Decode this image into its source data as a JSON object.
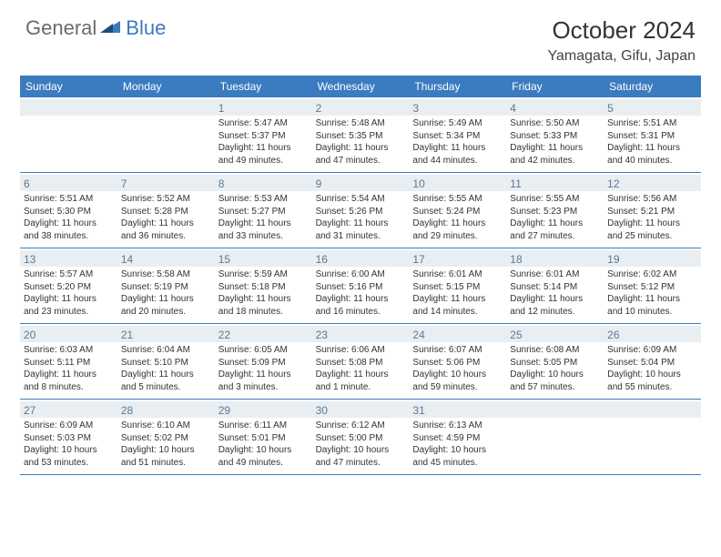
{
  "logo": {
    "general": "General",
    "blue": "Blue"
  },
  "title": "October 2024",
  "location": "Yamagata, Gifu, Japan",
  "colors": {
    "header_bg": "#3b7bbf",
    "daynum_bg": "#e9eef2",
    "daynum_color": "#5a7a96",
    "text": "#333333",
    "border": "#3b7bbf"
  },
  "weekdays": [
    "Sunday",
    "Monday",
    "Tuesday",
    "Wednesday",
    "Thursday",
    "Friday",
    "Saturday"
  ],
  "weeks": [
    [
      null,
      null,
      {
        "n": "1",
        "sr": "5:47 AM",
        "ss": "5:37 PM",
        "dl": "11 hours and 49 minutes."
      },
      {
        "n": "2",
        "sr": "5:48 AM",
        "ss": "5:35 PM",
        "dl": "11 hours and 47 minutes."
      },
      {
        "n": "3",
        "sr": "5:49 AM",
        "ss": "5:34 PM",
        "dl": "11 hours and 44 minutes."
      },
      {
        "n": "4",
        "sr": "5:50 AM",
        "ss": "5:33 PM",
        "dl": "11 hours and 42 minutes."
      },
      {
        "n": "5",
        "sr": "5:51 AM",
        "ss": "5:31 PM",
        "dl": "11 hours and 40 minutes."
      }
    ],
    [
      {
        "n": "6",
        "sr": "5:51 AM",
        "ss": "5:30 PM",
        "dl": "11 hours and 38 minutes."
      },
      {
        "n": "7",
        "sr": "5:52 AM",
        "ss": "5:28 PM",
        "dl": "11 hours and 36 minutes."
      },
      {
        "n": "8",
        "sr": "5:53 AM",
        "ss": "5:27 PM",
        "dl": "11 hours and 33 minutes."
      },
      {
        "n": "9",
        "sr": "5:54 AM",
        "ss": "5:26 PM",
        "dl": "11 hours and 31 minutes."
      },
      {
        "n": "10",
        "sr": "5:55 AM",
        "ss": "5:24 PM",
        "dl": "11 hours and 29 minutes."
      },
      {
        "n": "11",
        "sr": "5:55 AM",
        "ss": "5:23 PM",
        "dl": "11 hours and 27 minutes."
      },
      {
        "n": "12",
        "sr": "5:56 AM",
        "ss": "5:21 PM",
        "dl": "11 hours and 25 minutes."
      }
    ],
    [
      {
        "n": "13",
        "sr": "5:57 AM",
        "ss": "5:20 PM",
        "dl": "11 hours and 23 minutes."
      },
      {
        "n": "14",
        "sr": "5:58 AM",
        "ss": "5:19 PM",
        "dl": "11 hours and 20 minutes."
      },
      {
        "n": "15",
        "sr": "5:59 AM",
        "ss": "5:18 PM",
        "dl": "11 hours and 18 minutes."
      },
      {
        "n": "16",
        "sr": "6:00 AM",
        "ss": "5:16 PM",
        "dl": "11 hours and 16 minutes."
      },
      {
        "n": "17",
        "sr": "6:01 AM",
        "ss": "5:15 PM",
        "dl": "11 hours and 14 minutes."
      },
      {
        "n": "18",
        "sr": "6:01 AM",
        "ss": "5:14 PM",
        "dl": "11 hours and 12 minutes."
      },
      {
        "n": "19",
        "sr": "6:02 AM",
        "ss": "5:12 PM",
        "dl": "11 hours and 10 minutes."
      }
    ],
    [
      {
        "n": "20",
        "sr": "6:03 AM",
        "ss": "5:11 PM",
        "dl": "11 hours and 8 minutes."
      },
      {
        "n": "21",
        "sr": "6:04 AM",
        "ss": "5:10 PM",
        "dl": "11 hours and 5 minutes."
      },
      {
        "n": "22",
        "sr": "6:05 AM",
        "ss": "5:09 PM",
        "dl": "11 hours and 3 minutes."
      },
      {
        "n": "23",
        "sr": "6:06 AM",
        "ss": "5:08 PM",
        "dl": "11 hours and 1 minute."
      },
      {
        "n": "24",
        "sr": "6:07 AM",
        "ss": "5:06 PM",
        "dl": "10 hours and 59 minutes."
      },
      {
        "n": "25",
        "sr": "6:08 AM",
        "ss": "5:05 PM",
        "dl": "10 hours and 57 minutes."
      },
      {
        "n": "26",
        "sr": "6:09 AM",
        "ss": "5:04 PM",
        "dl": "10 hours and 55 minutes."
      }
    ],
    [
      {
        "n": "27",
        "sr": "6:09 AM",
        "ss": "5:03 PM",
        "dl": "10 hours and 53 minutes."
      },
      {
        "n": "28",
        "sr": "6:10 AM",
        "ss": "5:02 PM",
        "dl": "10 hours and 51 minutes."
      },
      {
        "n": "29",
        "sr": "6:11 AM",
        "ss": "5:01 PM",
        "dl": "10 hours and 49 minutes."
      },
      {
        "n": "30",
        "sr": "6:12 AM",
        "ss": "5:00 PM",
        "dl": "10 hours and 47 minutes."
      },
      {
        "n": "31",
        "sr": "6:13 AM",
        "ss": "4:59 PM",
        "dl": "10 hours and 45 minutes."
      },
      null,
      null
    ]
  ],
  "labels": {
    "sunrise": "Sunrise:",
    "sunset": "Sunset:",
    "daylight": "Daylight:"
  }
}
